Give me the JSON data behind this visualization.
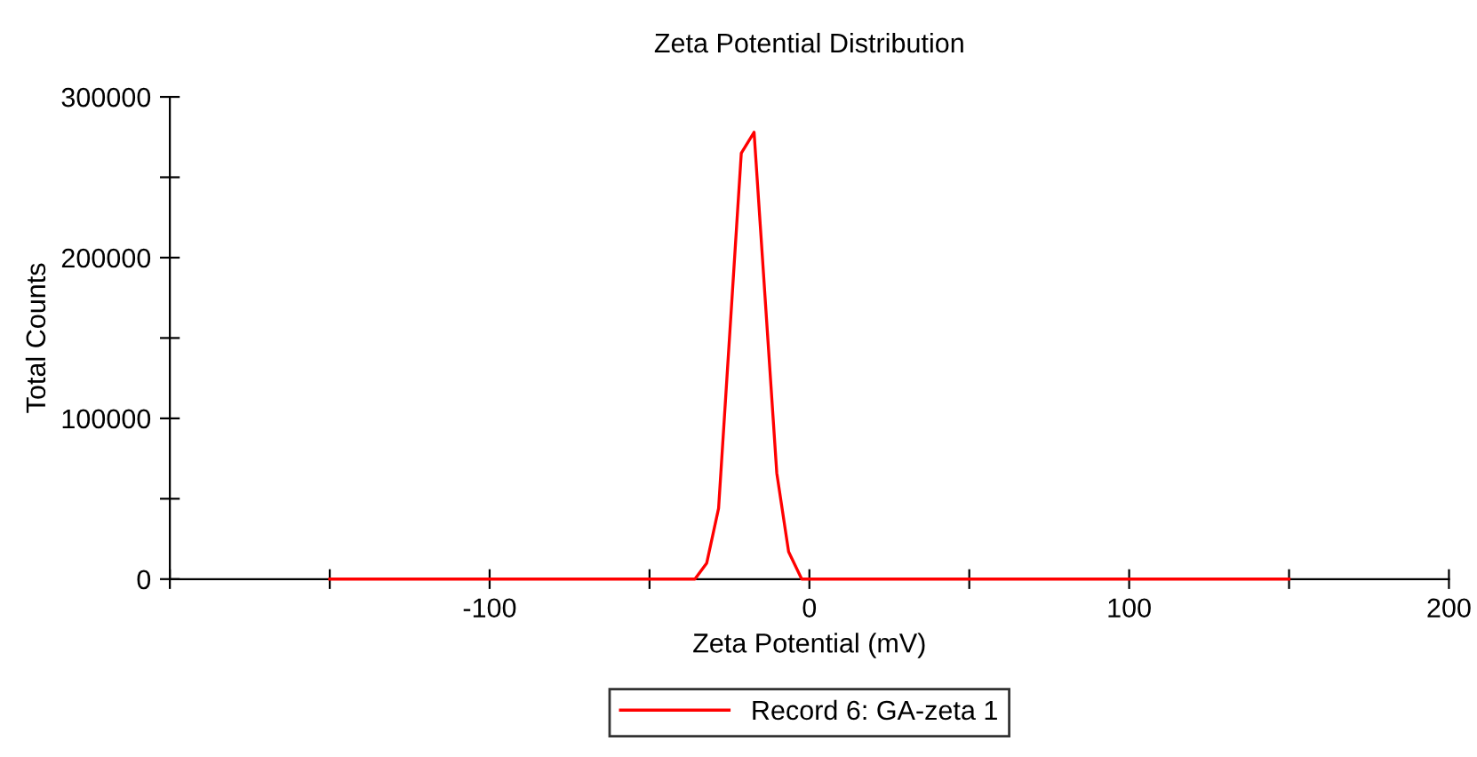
{
  "chart_data": {
    "type": "line",
    "title": "Zeta Potential Distribution",
    "xlabel": "Zeta Potential (mV)",
    "ylabel": "Total Counts",
    "series": [
      {
        "name": "Record 6: GA-zeta 1",
        "color": "#ff0000",
        "x": [
          -150,
          -35.8,
          -32.1,
          -28.4,
          -21.3,
          -17.3,
          -10.2,
          -6.5,
          -2.4,
          150
        ],
        "values": [
          0,
          0,
          10000,
          44000,
          265000,
          278000,
          66000,
          17000,
          0,
          0
        ]
      }
    ],
    "xlim": [
      -200,
      200
    ],
    "ylim": [
      0,
      300000
    ],
    "xticks": [
      {
        "value": -200,
        "label": null
      },
      {
        "value": -150,
        "label": null
      },
      -100,
      {
        "value": -50,
        "label": null
      },
      0,
      {
        "value": 50,
        "label": null
      },
      100,
      {
        "value": 150,
        "label": null
      },
      200
    ],
    "yticks": [
      0,
      {
        "value": 50000,
        "label": null
      },
      100000,
      {
        "value": 150000,
        "label": null
      },
      200000,
      {
        "value": 250000,
        "label": null
      },
      300000
    ],
    "grid": false,
    "legend": "bottom",
    "marker": "none",
    "line_style": "solid"
  }
}
